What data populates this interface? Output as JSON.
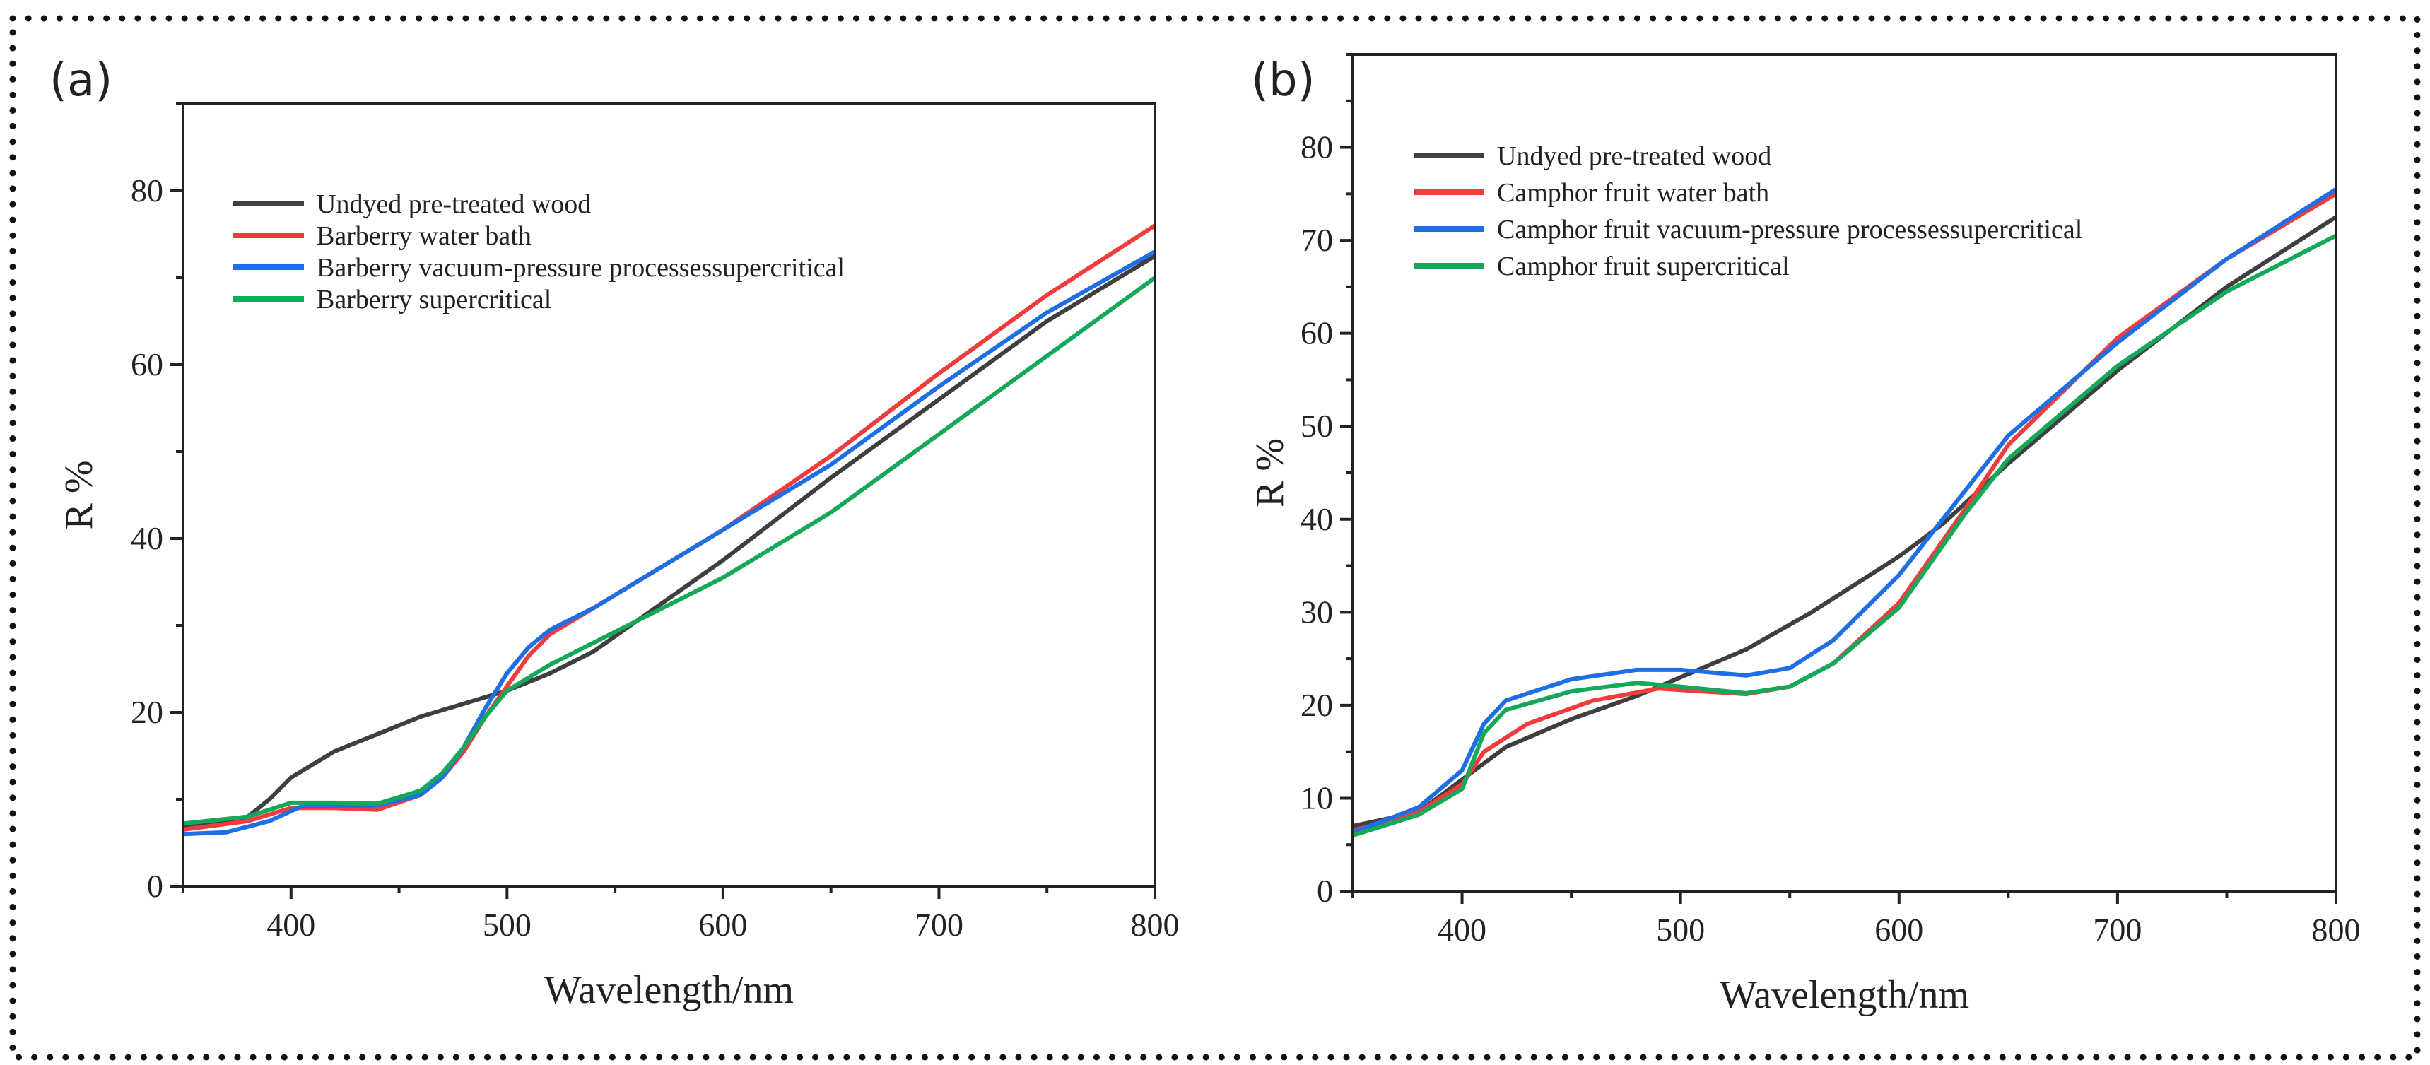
{
  "chart_data": [
    {
      "type": "line",
      "panel_label": "(a)",
      "xlabel": "Wavelength/nm",
      "ylabel": "R %",
      "xlim": [
        350,
        800
      ],
      "ylim": [
        0,
        90
      ],
      "xticks": [
        400,
        500,
        600,
        700,
        800
      ],
      "yticks": [
        0,
        20,
        40,
        60,
        80
      ],
      "legend_position": "top-left",
      "series": [
        {
          "name": "Undyed pre-treated wood",
          "color": "#3f3f3f",
          "x": [
            350,
            370,
            380,
            390,
            400,
            420,
            440,
            460,
            480,
            500,
            520,
            540,
            560,
            580,
            600,
            650,
            700,
            750,
            800
          ],
          "y": [
            7,
            7.5,
            8,
            10,
            12.5,
            15.5,
            17.5,
            19.5,
            21,
            22.5,
            24.5,
            27,
            30.5,
            34,
            37.5,
            47,
            56,
            65,
            72.5
          ]
        },
        {
          "name": "Barberry water bath",
          "color": "#f03c3c",
          "x": [
            350,
            380,
            400,
            420,
            440,
            460,
            470,
            480,
            490,
            500,
            510,
            520,
            540,
            560,
            600,
            650,
            700,
            750,
            800
          ],
          "y": [
            6.5,
            7.5,
            9,
            9,
            8.8,
            10.5,
            12.5,
            15.5,
            19.5,
            23,
            26.5,
            29,
            32,
            35,
            41,
            49.5,
            59,
            68,
            76
          ]
        },
        {
          "name": "Barberry vacuum-pressure processessupercritical",
          "color": "#1e6fe6",
          "x": [
            350,
            370,
            390,
            405,
            420,
            440,
            460,
            470,
            480,
            490,
            500,
            510,
            520,
            540,
            560,
            600,
            650,
            700,
            750,
            800
          ],
          "y": [
            6,
            6.2,
            7.5,
            9.2,
            9.2,
            9.3,
            10.5,
            12.5,
            16,
            20.5,
            24.5,
            27.5,
            29.5,
            32,
            35,
            41,
            48.5,
            57.5,
            66,
            73
          ]
        },
        {
          "name": "Barberry  supercritical",
          "color": "#14a85a",
          "x": [
            350,
            380,
            400,
            420,
            440,
            460,
            470,
            480,
            490,
            500,
            520,
            540,
            560,
            600,
            650,
            700,
            750,
            800
          ],
          "y": [
            7.2,
            8,
            9.6,
            9.6,
            9.5,
            11,
            13,
            16,
            19.5,
            22.5,
            25.5,
            28,
            30.5,
            35.5,
            43,
            52,
            61,
            70
          ]
        }
      ]
    },
    {
      "type": "line",
      "panel_label": "(b)",
      "xlabel": "Wavelength/nm",
      "ylabel": "R %",
      "xlim": [
        350,
        800
      ],
      "ylim": [
        0,
        90
      ],
      "xticks": [
        400,
        500,
        600,
        700,
        800
      ],
      "yticks": [
        0,
        10,
        20,
        30,
        40,
        50,
        60,
        70,
        80
      ],
      "legend_position": "top-left",
      "series": [
        {
          "name": "Undyed pre-treated wood",
          "color": "#3f3f3f",
          "x": [
            350,
            380,
            400,
            420,
            450,
            480,
            500,
            530,
            560,
            600,
            620,
            650,
            700,
            750,
            800
          ],
          "y": [
            7,
            8.5,
            12,
            15.5,
            18.5,
            21,
            23,
            26,
            30,
            36,
            39.5,
            46,
            56,
            65,
            72.5
          ]
        },
        {
          "name": "Camphor fruit water bath",
          "color": "#f03c3c",
          "x": [
            350,
            380,
            400,
            410,
            430,
            460,
            490,
            510,
            530,
            550,
            570,
            600,
            630,
            650,
            700,
            750,
            800
          ],
          "y": [
            6.5,
            8.5,
            11.5,
            15,
            18,
            20.5,
            21.8,
            21.5,
            21.2,
            22,
            24.5,
            31,
            41,
            48,
            59.5,
            68,
            75
          ]
        },
        {
          "name": "Camphor fruit vacuum-pressure processessupercritical",
          "color": "#1e6fe6",
          "x": [
            350,
            380,
            400,
            410,
            420,
            450,
            480,
            500,
            530,
            550,
            570,
            600,
            630,
            650,
            700,
            750,
            800
          ],
          "y": [
            6.3,
            9,
            13,
            18,
            20.5,
            22.8,
            23.8,
            23.8,
            23.2,
            24,
            27,
            34,
            43,
            49,
            59,
            68,
            75.5
          ]
        },
        {
          "name": "Camphor fruit supercritical",
          "color": "#14a85a",
          "x": [
            350,
            380,
            400,
            410,
            420,
            450,
            480,
            500,
            530,
            550,
            570,
            600,
            630,
            650,
            700,
            750,
            800
          ],
          "y": [
            6,
            8.2,
            11,
            17,
            19.5,
            21.5,
            22.4,
            22,
            21.3,
            22,
            24.5,
            30.5,
            40.5,
            46.5,
            56.5,
            64.5,
            70.5
          ]
        }
      ]
    }
  ]
}
